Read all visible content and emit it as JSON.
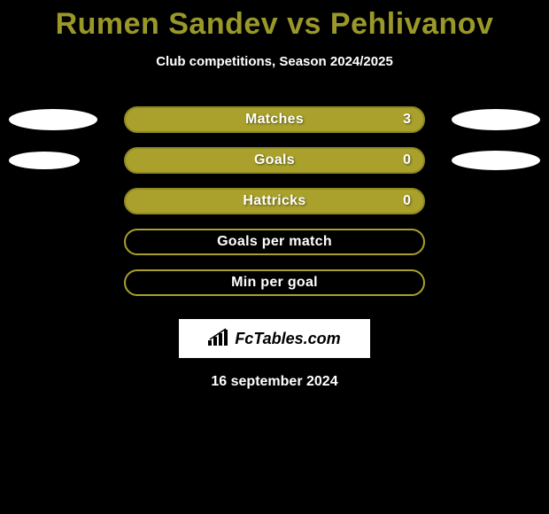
{
  "title": "Rumen Sandev vs Pehlivanov",
  "subtitle": "Club competitions, Season 2024/2025",
  "colors": {
    "title": "#9a9829",
    "bar_fill": "#a9a12c",
    "bar_border": "#8f8824",
    "ellipse": "#ffffff",
    "background": "#000000",
    "text_light": "#ffffff"
  },
  "ellipse": {
    "row0": {
      "left_w": 100,
      "left_h": 24,
      "right_w": 100,
      "right_h": 24
    },
    "row1": {
      "left_w": 80,
      "left_h": 20,
      "right_w": 100,
      "right_h": 22
    }
  },
  "rows": [
    {
      "label": "Matches",
      "value_right": "3",
      "show_left_ellipse": true,
      "show_right_ellipse": true,
      "fill": true,
      "ellipse_key": "row0"
    },
    {
      "label": "Goals",
      "value_right": "0",
      "show_left_ellipse": true,
      "show_right_ellipse": true,
      "fill": true,
      "ellipse_key": "row1"
    },
    {
      "label": "Hattricks",
      "value_right": "0",
      "show_left_ellipse": false,
      "show_right_ellipse": false,
      "fill": true
    },
    {
      "label": "Goals per match",
      "value_right": "",
      "show_left_ellipse": false,
      "show_right_ellipse": false,
      "fill": false
    },
    {
      "label": "Min per goal",
      "value_right": "",
      "show_left_ellipse": false,
      "show_right_ellipse": false,
      "fill": false
    }
  ],
  "footer": {
    "brand": "FcTables.com",
    "date": "16 september 2024"
  }
}
